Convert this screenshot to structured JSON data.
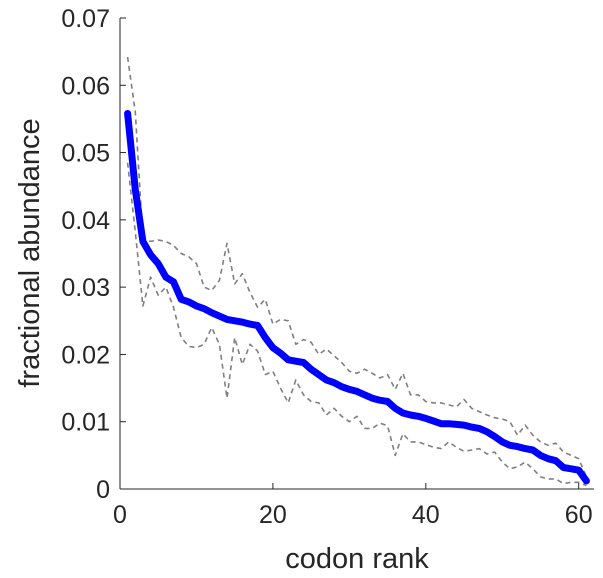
{
  "chart_data": {
    "type": "line",
    "title": "",
    "xlabel": "codon rank",
    "ylabel": "fractional abundance",
    "xlim": [
      0,
      62
    ],
    "ylim": [
      0,
      0.07
    ],
    "x_ticks": [
      0,
      20,
      40,
      60
    ],
    "x_tick_labels": [
      "0",
      "20",
      "40",
      "60"
    ],
    "y_ticks": [
      0,
      0.01,
      0.02,
      0.03,
      0.04,
      0.05,
      0.06,
      0.07
    ],
    "y_tick_labels": [
      "0",
      "0.01",
      "0.02",
      "0.03",
      "0.04",
      "0.05",
      "0.06",
      "0.07"
    ],
    "grid": false,
    "series": [
      {
        "role": "mean",
        "color": "#0000ff",
        "style": "solid",
        "x": [
          1,
          2,
          3,
          4,
          5,
          6,
          7,
          8,
          9,
          10,
          11,
          12,
          13,
          14,
          15,
          16,
          17,
          18,
          19,
          20,
          21,
          22,
          23,
          24,
          25,
          26,
          27,
          28,
          29,
          30,
          31,
          32,
          33,
          34,
          35,
          36,
          37,
          38,
          39,
          40,
          41,
          42,
          43,
          44,
          45,
          46,
          47,
          48,
          49,
          50,
          51,
          52,
          53,
          54,
          55,
          56,
          57,
          58,
          59,
          60,
          61
        ],
        "values": [
          0.0558,
          0.0445,
          0.0368,
          0.0348,
          0.0335,
          0.0315,
          0.0308,
          0.0282,
          0.0278,
          0.0272,
          0.0268,
          0.0262,
          0.0257,
          0.0252,
          0.025,
          0.0248,
          0.0245,
          0.0243,
          0.0225,
          0.021,
          0.0202,
          0.0192,
          0.019,
          0.0188,
          0.0178,
          0.017,
          0.0162,
          0.0158,
          0.0152,
          0.0148,
          0.0145,
          0.014,
          0.0135,
          0.0132,
          0.013,
          0.012,
          0.0113,
          0.011,
          0.0108,
          0.0105,
          0.0101,
          0.0097,
          0.0097,
          0.0096,
          0.0095,
          0.0092,
          0.009,
          0.0085,
          0.0078,
          0.007,
          0.0065,
          0.0063,
          0.006,
          0.0058,
          0.005,
          0.0045,
          0.0042,
          0.0032,
          0.003,
          0.0028,
          0.0012
        ]
      },
      {
        "role": "upper-bound",
        "color": "#7f7f7f",
        "style": "dashed",
        "x": [
          1,
          2,
          3,
          4,
          5,
          6,
          7,
          8,
          9,
          10,
          11,
          12,
          13,
          14,
          15,
          16,
          17,
          18,
          19,
          20,
          21,
          22,
          23,
          24,
          25,
          26,
          27,
          28,
          29,
          30,
          31,
          32,
          33,
          34,
          35,
          36,
          37,
          38,
          39,
          40,
          41,
          42,
          43,
          44,
          45,
          46,
          47,
          48,
          49,
          50,
          51,
          52,
          53,
          54,
          55,
          56,
          57,
          58,
          59,
          60,
          61
        ],
        "values": [
          0.0642,
          0.056,
          0.0372,
          0.0368,
          0.037,
          0.0368,
          0.0362,
          0.035,
          0.0345,
          0.0335,
          0.03,
          0.0295,
          0.031,
          0.0365,
          0.0305,
          0.032,
          0.0292,
          0.027,
          0.0282,
          0.0245,
          0.0252,
          0.025,
          0.0215,
          0.0222,
          0.0218,
          0.02,
          0.0208,
          0.0198,
          0.0188,
          0.0175,
          0.0172,
          0.0178,
          0.0172,
          0.0165,
          0.017,
          0.0148,
          0.0172,
          0.014,
          0.014,
          0.013,
          0.0128,
          0.0128,
          0.0125,
          0.0122,
          0.0133,
          0.012,
          0.0115,
          0.011,
          0.0106,
          0.0104,
          0.01,
          0.008,
          0.0095,
          0.008,
          0.007,
          0.0065,
          0.0068,
          0.0055,
          0.005,
          0.0045,
          0.0018
        ]
      },
      {
        "role": "lower-bound",
        "color": "#7f7f7f",
        "style": "dashed",
        "x": [
          1,
          2,
          3,
          4,
          5,
          6,
          7,
          8,
          9,
          10,
          11,
          12,
          13,
          14,
          15,
          16,
          17,
          18,
          19,
          20,
          21,
          22,
          23,
          24,
          25,
          26,
          27,
          28,
          29,
          30,
          31,
          32,
          33,
          34,
          35,
          36,
          37,
          38,
          39,
          40,
          41,
          42,
          43,
          44,
          45,
          46,
          47,
          48,
          49,
          50,
          51,
          52,
          53,
          54,
          55,
          56,
          57,
          58,
          59,
          60,
          61
        ],
        "values": [
          0.0485,
          0.0382,
          0.0272,
          0.0315,
          0.0288,
          0.03,
          0.027,
          0.0225,
          0.0212,
          0.021,
          0.0215,
          0.024,
          0.0215,
          0.0135,
          0.0225,
          0.0185,
          0.0215,
          0.0205,
          0.017,
          0.0175,
          0.015,
          0.0128,
          0.0162,
          0.014,
          0.013,
          0.0128,
          0.011,
          0.012,
          0.0108,
          0.01,
          0.0108,
          0.009,
          0.009,
          0.0098,
          0.0094,
          0.005,
          0.0082,
          0.007,
          0.007,
          0.0066,
          0.0062,
          0.006,
          0.007,
          0.0062,
          0.0056,
          0.0058,
          0.006,
          0.0052,
          0.0055,
          0.004,
          0.003,
          0.0033,
          0.004,
          0.003,
          0.0018,
          0.0015,
          0.0015,
          0.0008,
          0.001,
          0.001,
          0.0005
        ]
      }
    ]
  }
}
